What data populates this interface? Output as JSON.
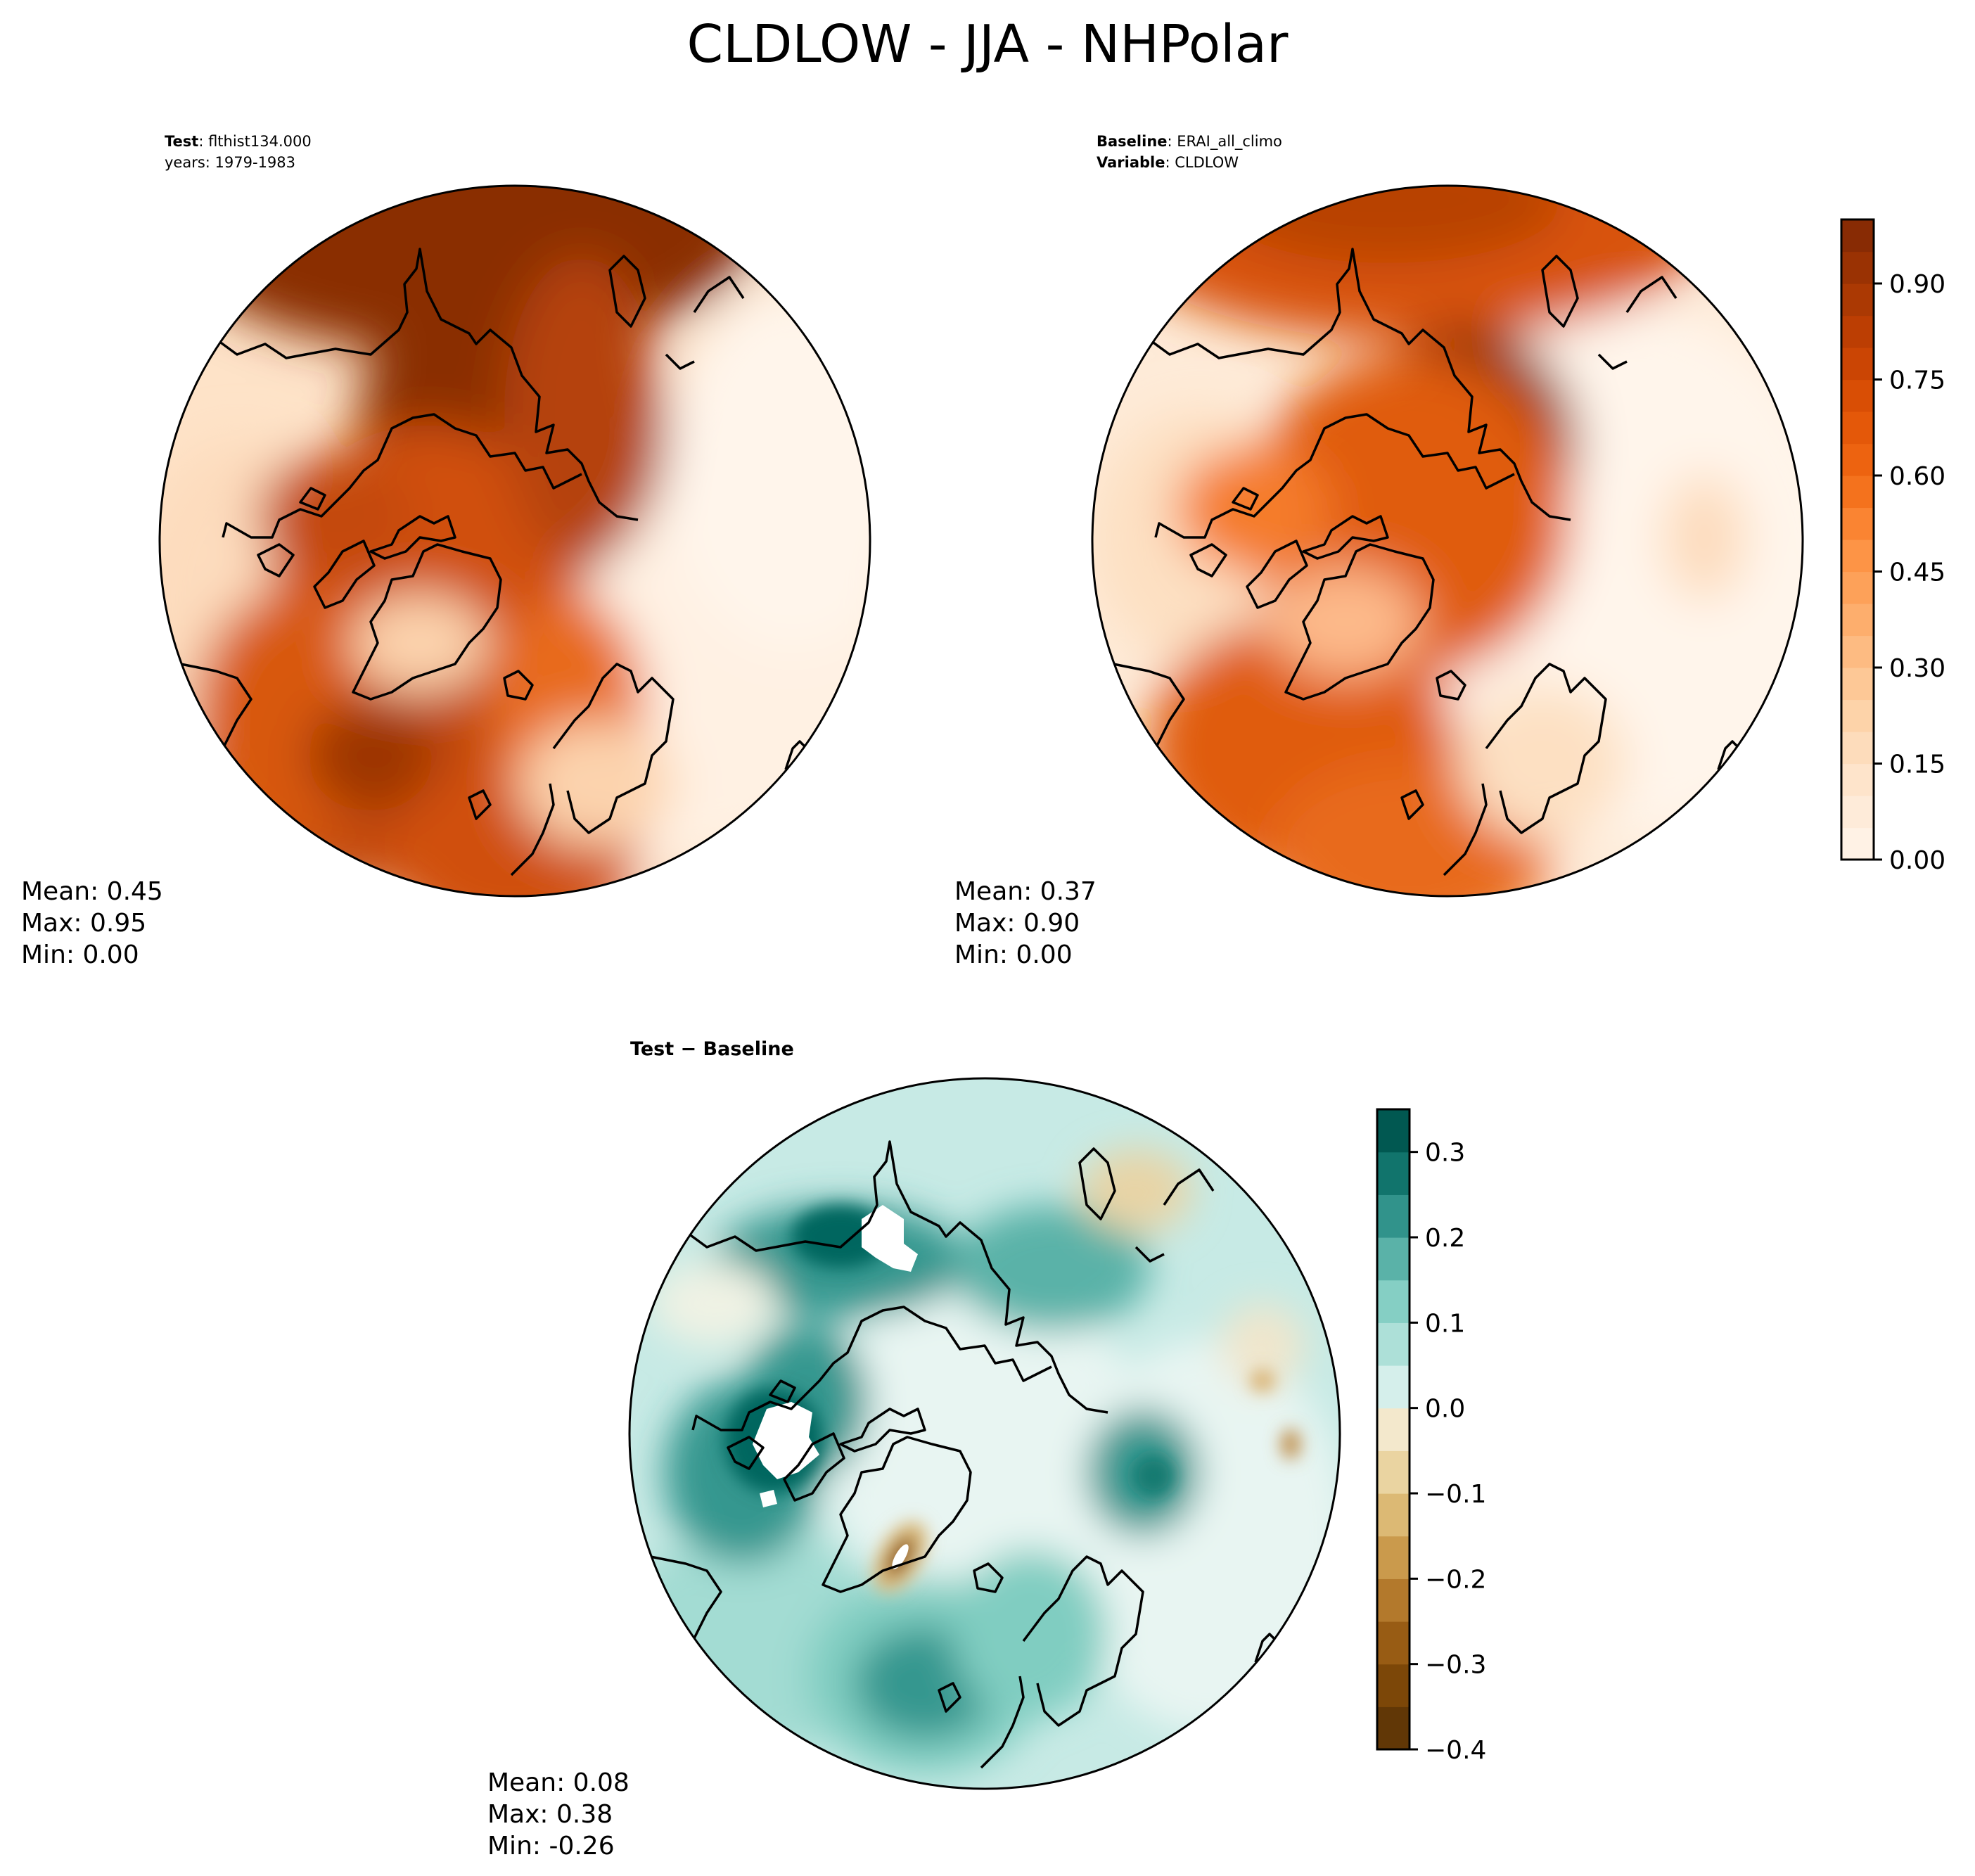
{
  "title": "CLDLOW - JJA - NHPolar",
  "test_panel": {
    "label_bold": "Test",
    "label_rest": ": flthist134.000",
    "years": "years: 1979-1983",
    "stats": {
      "mean": "Mean:  0.45",
      "max": "Max:  0.95",
      "min": "Min:  0.00"
    }
  },
  "baseline_panel": {
    "label_bold": "Baseline",
    "label_rest": ": ERAI_all_climo",
    "variable_bold": "Variable",
    "variable_rest": ": CLDLOW",
    "stats": {
      "mean": "Mean:  0.37",
      "max": "Max:  0.90",
      "min": "Min:  0.00"
    }
  },
  "diff_panel": {
    "title": "Test − Baseline",
    "stats": {
      "mean": "Mean:  0.08",
      "max": "Max:  0.38",
      "min": "Min: -0.26"
    }
  },
  "colors": {
    "oranges": [
      "#fff5eb",
      "#fee8d3",
      "#fdd8b3",
      "#fdc28c",
      "#fda762",
      "#fd8d3c",
      "#f16913",
      "#e05206",
      "#c44103",
      "#a33603",
      "#7f2704"
    ],
    "diverging_neg": [
      "#f5f0e0",
      "#f0e0b8",
      "#e4c88a",
      "#d4aa5e",
      "#c08a3a",
      "#a6671d",
      "#8a510a",
      "#6e3d07",
      "#543005"
    ],
    "diverging_pos": [
      "#e8f5f2",
      "#c7eae5",
      "#a3dcd3",
      "#80cdc1",
      "#5ab2a8",
      "#35978f",
      "#187a71",
      "#01665e",
      "#00463f"
    ]
  },
  "chart_data": [
    {
      "type": "heatmap",
      "name": "test",
      "projection": "north-polar-stereographic",
      "field": "CLDLOW",
      "season": "JJA",
      "case": "flthist134.000",
      "years": "1979-1983",
      "stats": {
        "mean": 0.45,
        "max": 0.95,
        "min": 0.0
      },
      "shared_colorbar": {
        "range": [
          0.0,
          1.0
        ],
        "ticks": [
          0.0,
          0.15,
          0.3,
          0.45,
          0.6,
          0.75,
          0.9
        ],
        "tick_labels": [
          "0.00",
          "0.15",
          "0.30",
          "0.45",
          "0.60",
          "0.75",
          "0.90"
        ],
        "levels": 20
      }
    },
    {
      "type": "heatmap",
      "name": "baseline",
      "projection": "north-polar-stereographic",
      "field": "CLDLOW",
      "case": "ERAI_all_climo",
      "stats": {
        "mean": 0.37,
        "max": 0.9,
        "min": 0.0
      },
      "colorbar": {
        "range": [
          0.0,
          1.0
        ],
        "ticks": [
          0.0,
          0.15,
          0.3,
          0.45,
          0.6,
          0.75,
          0.9
        ],
        "tick_labels": [
          "0.00",
          "0.15",
          "0.30",
          "0.45",
          "0.60",
          "0.75",
          "0.90"
        ],
        "levels": 20
      }
    },
    {
      "type": "heatmap",
      "name": "difference",
      "projection": "north-polar-stereographic",
      "title": "Test − Baseline",
      "stats": {
        "mean": 0.08,
        "max": 0.38,
        "min": -0.26
      },
      "colorbar": {
        "range": [
          -0.4,
          0.35
        ],
        "ticks": [
          -0.4,
          -0.3,
          -0.2,
          -0.1,
          0.0,
          0.1,
          0.2,
          0.3
        ],
        "tick_labels": [
          "−0.4",
          "−0.3",
          "−0.2",
          "−0.1",
          "0.0",
          "0.1",
          "0.2",
          "0.3"
        ],
        "levels": 15
      }
    }
  ]
}
